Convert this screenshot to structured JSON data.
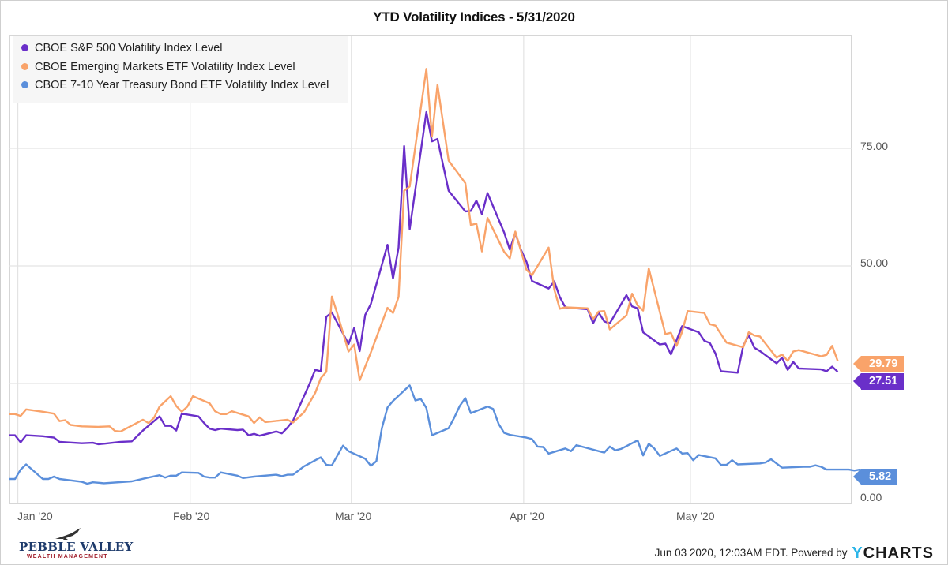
{
  "chart_data": {
    "type": "line",
    "title": "YTD Volatility Indices - 5/31/2020",
    "xlabel": "",
    "ylabel": "",
    "ylim": [
      -0.5,
      99
    ],
    "y_ticks": [
      {
        "value": 0,
        "label": "0.00"
      },
      {
        "value": 25,
        "label": ""
      },
      {
        "value": 50,
        "label": "50.00"
      },
      {
        "value": 75,
        "label": "75.00"
      }
    ],
    "x_ticks": [
      {
        "day": 1,
        "label": "Jan '20"
      },
      {
        "day": 32,
        "label": "Feb '20"
      },
      {
        "day": 61,
        "label": "Mar '20"
      },
      {
        "day": 92,
        "label": "Apr '20"
      },
      {
        "day": 122,
        "label": "May '20"
      }
    ],
    "x_range_days": [
      -0.5,
      151
    ],
    "grid": true,
    "legend_position": "top-left",
    "x_unit": "day of year 2020",
    "series": [
      {
        "name": "CBOE S&P 500 Volatility Index Level",
        "color": "#6a2fc9",
        "last_value_label": "27.51",
        "points": [
          [
            -0.5,
            14.0
          ],
          [
            0.5,
            14.0
          ],
          [
            1.5,
            12.5
          ],
          [
            2.5,
            14.0
          ],
          [
            5.5,
            13.8
          ],
          [
            7.5,
            13.5
          ],
          [
            8.5,
            12.6
          ],
          [
            12.5,
            12.3
          ],
          [
            14.5,
            12.4
          ],
          [
            15.5,
            12.1
          ],
          [
            16.5,
            12.2
          ],
          [
            19.5,
            12.6
          ],
          [
            21.5,
            12.7
          ],
          [
            23.5,
            15.0
          ],
          [
            26.5,
            18.0
          ],
          [
            27.5,
            16.0
          ],
          [
            28.5,
            16.0
          ],
          [
            29.5,
            15.0
          ],
          [
            30.5,
            18.6
          ],
          [
            33.5,
            18.0
          ],
          [
            34.5,
            16.6
          ],
          [
            35.5,
            15.4
          ],
          [
            36.5,
            15.1
          ],
          [
            37.5,
            15.4
          ],
          [
            40.5,
            15.1
          ],
          [
            41.5,
            15.2
          ],
          [
            42.5,
            14.0
          ],
          [
            43.5,
            14.3
          ],
          [
            44.5,
            13.9
          ],
          [
            47.5,
            14.8
          ],
          [
            48.5,
            14.4
          ],
          [
            49.5,
            15.6
          ],
          [
            50.5,
            17.1
          ],
          [
            53.5,
            25.0
          ],
          [
            54.5,
            27.9
          ],
          [
            55.5,
            27.6
          ],
          [
            56.5,
            39.2
          ],
          [
            57.5,
            40.1
          ],
          [
            60.5,
            33.4
          ],
          [
            61.5,
            36.8
          ],
          [
            62.5,
            31.9
          ],
          [
            63.5,
            39.6
          ],
          [
            64.5,
            41.9
          ],
          [
            67.5,
            54.5
          ],
          [
            68.5,
            47.3
          ],
          [
            69.5,
            53.9
          ],
          [
            70.5,
            75.5
          ],
          [
            71.5,
            57.8
          ],
          [
            74.5,
            82.7
          ],
          [
            75.5,
            76.5
          ],
          [
            76.5,
            77.0
          ],
          [
            78.5,
            66.0
          ],
          [
            81.5,
            61.6
          ],
          [
            82.5,
            61.7
          ],
          [
            83.5,
            63.9
          ],
          [
            84.5,
            61.0
          ],
          [
            85.5,
            65.5
          ],
          [
            88.5,
            57.1
          ],
          [
            89.5,
            53.5
          ],
          [
            90.5,
            57.0
          ],
          [
            91.5,
            53.5
          ],
          [
            92.5,
            50.9
          ],
          [
            93.5,
            46.8
          ],
          [
            96.5,
            45.2
          ],
          [
            97.5,
            46.7
          ],
          [
            98.5,
            43.4
          ],
          [
            99.5,
            41.2
          ],
          [
            103.5,
            40.8
          ],
          [
            104.5,
            37.8
          ],
          [
            105.5,
            40.1
          ],
          [
            106.5,
            38.2
          ],
          [
            107.5,
            37.8
          ],
          [
            110.5,
            43.8
          ],
          [
            111.5,
            41.4
          ],
          [
            112.5,
            41.0
          ],
          [
            113.5,
            35.9
          ],
          [
            116.5,
            33.3
          ],
          [
            117.5,
            33.5
          ],
          [
            118.5,
            31.2
          ],
          [
            119.5,
            34.2
          ],
          [
            120.5,
            37.2
          ],
          [
            123.5,
            35.9
          ],
          [
            124.5,
            34.1
          ],
          [
            125.5,
            33.6
          ],
          [
            126.5,
            31.4
          ],
          [
            127.5,
            27.6
          ],
          [
            130.5,
            27.3
          ],
          [
            131.5,
            33.0
          ],
          [
            132.5,
            35.3
          ],
          [
            133.5,
            32.6
          ],
          [
            134.5,
            31.9
          ],
          [
            137.5,
            29.3
          ],
          [
            138.5,
            30.5
          ],
          [
            139.5,
            27.9
          ],
          [
            140.5,
            29.6
          ],
          [
            141.5,
            28.2
          ],
          [
            145.5,
            28.0
          ],
          [
            146.5,
            27.6
          ],
          [
            147.5,
            28.6
          ],
          [
            148.5,
            27.5
          ]
        ]
      },
      {
        "name": "CBOE Emerging Markets ETF Volatility Index Level",
        "color": "#f9a36a",
        "last_value_label": "29.79",
        "points": [
          [
            -0.5,
            18.5
          ],
          [
            0.5,
            18.5
          ],
          [
            1.5,
            18.1
          ],
          [
            2.5,
            19.5
          ],
          [
            5.5,
            19.0
          ],
          [
            7.5,
            18.6
          ],
          [
            8.5,
            17.0
          ],
          [
            9.5,
            17.2
          ],
          [
            10.5,
            16.2
          ],
          [
            12.5,
            15.9
          ],
          [
            15.5,
            15.8
          ],
          [
            17.5,
            15.9
          ],
          [
            18.5,
            14.9
          ],
          [
            19.5,
            14.8
          ],
          [
            23.5,
            17.3
          ],
          [
            24.5,
            16.6
          ],
          [
            25.5,
            17.7
          ],
          [
            26.5,
            20.1
          ],
          [
            28.5,
            22.3
          ],
          [
            29.5,
            20.2
          ],
          [
            30.5,
            19.0
          ],
          [
            31.5,
            20.1
          ],
          [
            32.5,
            22.3
          ],
          [
            33.5,
            21.8
          ],
          [
            35.5,
            20.8
          ],
          [
            36.5,
            19.1
          ],
          [
            37.5,
            18.5
          ],
          [
            38.5,
            18.5
          ],
          [
            39.5,
            19.1
          ],
          [
            42.5,
            18.0
          ],
          [
            43.5,
            16.6
          ],
          [
            44.5,
            17.8
          ],
          [
            45.5,
            16.8
          ],
          [
            49.5,
            17.3
          ],
          [
            50.5,
            16.7
          ],
          [
            52.5,
            18.9
          ],
          [
            54.5,
            23.0
          ],
          [
            55.5,
            26.1
          ],
          [
            56.5,
            27.5
          ],
          [
            57.5,
            43.5
          ],
          [
            58.5,
            39.8
          ],
          [
            60.5,
            31.8
          ],
          [
            61.5,
            33.3
          ],
          [
            62.5,
            25.7
          ],
          [
            64.5,
            31.6
          ],
          [
            67.5,
            41.1
          ],
          [
            68.5,
            40.0
          ],
          [
            69.5,
            43.4
          ],
          [
            70.5,
            66.0
          ],
          [
            71.5,
            66.9
          ],
          [
            74.5,
            91.9
          ],
          [
            75.5,
            77.5
          ],
          [
            76.5,
            88.5
          ],
          [
            78.5,
            72.4
          ],
          [
            81.5,
            67.6
          ],
          [
            82.5,
            58.7
          ],
          [
            83.5,
            59.0
          ],
          [
            84.5,
            53.1
          ],
          [
            85.5,
            60.2
          ],
          [
            88.5,
            53.0
          ],
          [
            89.5,
            51.6
          ],
          [
            90.5,
            57.3
          ],
          [
            92.5,
            49.2
          ],
          [
            93.5,
            48.0
          ],
          [
            96.5,
            53.9
          ],
          [
            97.5,
            45.0
          ],
          [
            98.5,
            40.9
          ],
          [
            99.5,
            41.2
          ],
          [
            103.5,
            41.0
          ],
          [
            104.5,
            38.7
          ],
          [
            105.5,
            40.3
          ],
          [
            106.5,
            40.4
          ],
          [
            107.5,
            36.5
          ],
          [
            110.5,
            39.5
          ],
          [
            111.5,
            44.1
          ],
          [
            112.5,
            41.6
          ],
          [
            113.5,
            40.5
          ],
          [
            114.5,
            49.5
          ],
          [
            117.5,
            35.5
          ],
          [
            118.5,
            35.8
          ],
          [
            119.5,
            33.0
          ],
          [
            120.5,
            36.0
          ],
          [
            121.5,
            40.4
          ],
          [
            124.5,
            40.0
          ],
          [
            125.5,
            37.6
          ],
          [
            126.5,
            37.3
          ],
          [
            127.5,
            35.5
          ],
          [
            128.5,
            33.7
          ],
          [
            131.5,
            32.7
          ],
          [
            132.5,
            35.9
          ],
          [
            133.5,
            35.2
          ],
          [
            134.5,
            35.0
          ],
          [
            137.5,
            30.5
          ],
          [
            138.5,
            31.2
          ],
          [
            139.5,
            29.8
          ],
          [
            140.5,
            31.8
          ],
          [
            141.5,
            32.1
          ],
          [
            145.5,
            30.8
          ],
          [
            146.5,
            31.1
          ],
          [
            147.5,
            33.0
          ],
          [
            148.5,
            29.8
          ]
        ]
      },
      {
        "name": "CBOE 7-10 Year Treasury Bond ETF Volatility Index Level",
        "color": "#5b8fdb",
        "last_value_label": "5.82",
        "points": [
          [
            -0.5,
            4.7
          ],
          [
            0.5,
            4.7
          ],
          [
            1.5,
            6.7
          ],
          [
            2.5,
            7.8
          ],
          [
            5.5,
            4.7
          ],
          [
            6.5,
            4.7
          ],
          [
            7.5,
            5.2
          ],
          [
            8.5,
            4.7
          ],
          [
            12.5,
            4.1
          ],
          [
            13.5,
            3.7
          ],
          [
            14.5,
            4.0
          ],
          [
            16.5,
            3.8
          ],
          [
            21.5,
            4.2
          ],
          [
            24.5,
            5.0
          ],
          [
            26.5,
            5.5
          ],
          [
            27.5,
            5.0
          ],
          [
            28.5,
            5.4
          ],
          [
            29.5,
            5.4
          ],
          [
            30.5,
            6.1
          ],
          [
            33.5,
            6.0
          ],
          [
            34.5,
            5.2
          ],
          [
            35.5,
            5.0
          ],
          [
            36.5,
            5.0
          ],
          [
            37.5,
            6.1
          ],
          [
            40.5,
            5.4
          ],
          [
            41.5,
            4.9
          ],
          [
            43.5,
            5.2
          ],
          [
            47.5,
            5.6
          ],
          [
            48.5,
            5.3
          ],
          [
            49.5,
            5.6
          ],
          [
            50.5,
            5.6
          ],
          [
            52.5,
            7.4
          ],
          [
            55.5,
            9.3
          ],
          [
            56.5,
            7.7
          ],
          [
            57.5,
            7.6
          ],
          [
            59.5,
            11.8
          ],
          [
            60.5,
            10.6
          ],
          [
            63.5,
            9.0
          ],
          [
            64.5,
            7.5
          ],
          [
            65.5,
            8.5
          ],
          [
            66.5,
            15.5
          ],
          [
            67.5,
            19.9
          ],
          [
            68.5,
            21.3
          ],
          [
            71.5,
            24.6
          ],
          [
            72.5,
            21.4
          ],
          [
            73.5,
            21.7
          ],
          [
            74.5,
            19.8
          ],
          [
            75.5,
            14.0
          ],
          [
            78.5,
            15.5
          ],
          [
            79.5,
            17.7
          ],
          [
            80.5,
            20.2
          ],
          [
            81.5,
            21.9
          ],
          [
            82.5,
            18.7
          ],
          [
            85.5,
            20.1
          ],
          [
            86.5,
            19.6
          ],
          [
            87.5,
            16.4
          ],
          [
            88.5,
            14.5
          ],
          [
            89.5,
            14.1
          ],
          [
            92.5,
            13.5
          ],
          [
            93.5,
            13.2
          ],
          [
            94.5,
            11.6
          ],
          [
            95.5,
            11.5
          ],
          [
            96.5,
            10.1
          ],
          [
            99.5,
            11.2
          ],
          [
            100.5,
            10.6
          ],
          [
            101.5,
            11.9
          ],
          [
            106.5,
            10.3
          ],
          [
            107.5,
            11.6
          ],
          [
            108.5,
            10.8
          ],
          [
            109.5,
            11.1
          ],
          [
            112.5,
            12.9
          ],
          [
            113.5,
            9.7
          ],
          [
            114.5,
            12.2
          ],
          [
            115.5,
            11.2
          ],
          [
            116.5,
            9.6
          ],
          [
            119.5,
            11.2
          ],
          [
            120.5,
            10.1
          ],
          [
            121.5,
            10.2
          ],
          [
            122.5,
            8.7
          ],
          [
            123.5,
            9.8
          ],
          [
            126.5,
            9.1
          ],
          [
            127.5,
            7.7
          ],
          [
            128.5,
            7.7
          ],
          [
            129.5,
            8.7
          ],
          [
            130.5,
            7.8
          ],
          [
            134.5,
            8.0
          ],
          [
            135.5,
            8.2
          ],
          [
            136.5,
            8.9
          ],
          [
            138.5,
            7.1
          ],
          [
            142.5,
            7.3
          ],
          [
            143.5,
            7.3
          ],
          [
            144.5,
            7.6
          ],
          [
            145.5,
            7.3
          ],
          [
            146.5,
            6.7
          ],
          [
            150.5,
            6.7
          ],
          [
            151.5,
            6.5
          ],
          [
            152.5,
            6.7
          ],
          [
            153.5,
            5.8
          ]
        ]
      }
    ]
  },
  "footer": {
    "timestamp": "Jun 03 2020, 12:03AM EDT.",
    "powered_by": "Powered by",
    "brand_y": "Y",
    "brand_rest": "CHARTS"
  },
  "logo": {
    "name": "PEBBLE VALLEY",
    "tagline": "WEALTH MANAGEMENT",
    "icon": "eagle-icon"
  },
  "colors": {
    "grid": "#e3e3e3",
    "axis": "#c9c9c9",
    "legend_bg": "#f6f6f6"
  }
}
